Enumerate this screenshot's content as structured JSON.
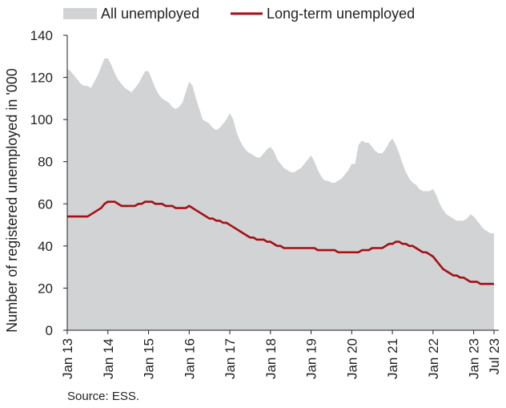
{
  "chart_data": {
    "type": "area",
    "ylabel": "Number of registered unemployed in '000",
    "ylim": [
      0,
      140
    ],
    "yticks": [
      0,
      20,
      40,
      60,
      80,
      100,
      120,
      140
    ],
    "x_tick_labels": [
      "Jan 13",
      "Jan 14",
      "Jan 15",
      "Jan 16",
      "Jan 17",
      "Jan 18",
      "Jan 19",
      "Jan 20",
      "Jan 21",
      "Jan 22",
      "Jan 23",
      "Jul 23"
    ],
    "x_tick_month_index": [
      0,
      12,
      24,
      36,
      48,
      60,
      72,
      84,
      96,
      108,
      120,
      126
    ],
    "x_start": "2013-01",
    "x_end": "2023-07",
    "legend_position": "top",
    "grid": false,
    "series": [
      {
        "name": "All unemployed",
        "style": "area",
        "color": "#d1d3d4",
        "values": [
          124,
          123,
          121,
          119,
          117,
          116,
          116,
          115,
          118,
          121,
          125,
          129,
          129,
          126,
          122,
          119,
          117,
          115,
          114,
          113,
          115,
          117,
          120,
          123,
          123,
          119,
          115,
          112,
          110,
          109,
          108,
          106,
          105,
          106,
          108,
          113,
          118,
          116,
          110,
          105,
          100,
          99,
          98,
          96,
          95,
          96,
          98,
          100,
          103,
          100,
          94,
          90,
          87,
          85,
          84,
          83,
          82,
          82,
          84,
          86,
          87,
          85,
          81,
          79,
          77,
          76,
          75,
          75,
          76,
          77,
          79,
          81,
          83,
          80,
          76,
          73,
          71,
          71,
          70,
          70,
          71,
          72,
          74,
          76,
          79,
          79,
          88,
          90,
          89,
          89,
          87,
          85,
          84,
          84,
          86,
          89,
          91,
          88,
          84,
          79,
          75,
          72,
          70,
          69,
          67,
          66,
          66,
          66,
          67,
          64,
          60,
          57,
          55,
          54,
          53,
          52,
          52,
          52,
          53,
          55,
          54,
          52,
          50,
          48,
          47,
          46,
          46
        ]
      },
      {
        "name": "Long-term unemployed",
        "style": "line",
        "color": "#a50f15",
        "values": [
          54,
          54,
          54,
          54,
          54,
          54,
          54,
          55,
          56,
          57,
          58,
          60,
          61,
          61,
          61,
          60,
          59,
          59,
          59,
          59,
          59,
          60,
          60,
          61,
          61,
          61,
          60,
          60,
          60,
          59,
          59,
          59,
          58,
          58,
          58,
          58,
          59,
          58,
          57,
          56,
          55,
          54,
          53,
          53,
          52,
          52,
          51,
          51,
          50,
          49,
          48,
          47,
          46,
          45,
          44,
          44,
          43,
          43,
          43,
          42,
          42,
          41,
          40,
          40,
          39,
          39,
          39,
          39,
          39,
          39,
          39,
          39,
          39,
          39,
          38,
          38,
          38,
          38,
          38,
          38,
          37,
          37,
          37,
          37,
          37,
          37,
          37,
          38,
          38,
          38,
          39,
          39,
          39,
          39,
          40,
          41,
          41,
          42,
          42,
          41,
          41,
          40,
          40,
          39,
          38,
          37,
          37,
          36,
          35,
          33,
          31,
          29,
          28,
          27,
          26,
          26,
          25,
          25,
          24,
          23,
          23,
          23,
          22,
          22,
          22,
          22,
          22
        ]
      }
    ],
    "source_note": "Source: ESS."
  }
}
